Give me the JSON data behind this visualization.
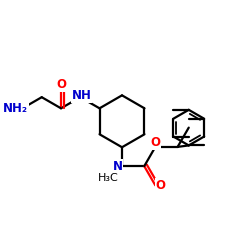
{
  "bg_color": "#ffffff",
  "atom_color_N": "#0000cd",
  "atom_color_O": "#ff0000",
  "atom_color_C": "#000000",
  "bond_color": "#000000",
  "bond_lw": 1.6,
  "aromatic_lw": 1.3,
  "font_size_NH": 8.5,
  "font_size_NH2": 8.5,
  "font_size_O": 8.5,
  "font_size_N": 8.5,
  "font_size_H3C": 8.0,
  "figsize": [
    2.5,
    2.5
  ],
  "dpi": 100,
  "xlim": [
    0,
    10
  ],
  "ylim": [
    0,
    10
  ]
}
